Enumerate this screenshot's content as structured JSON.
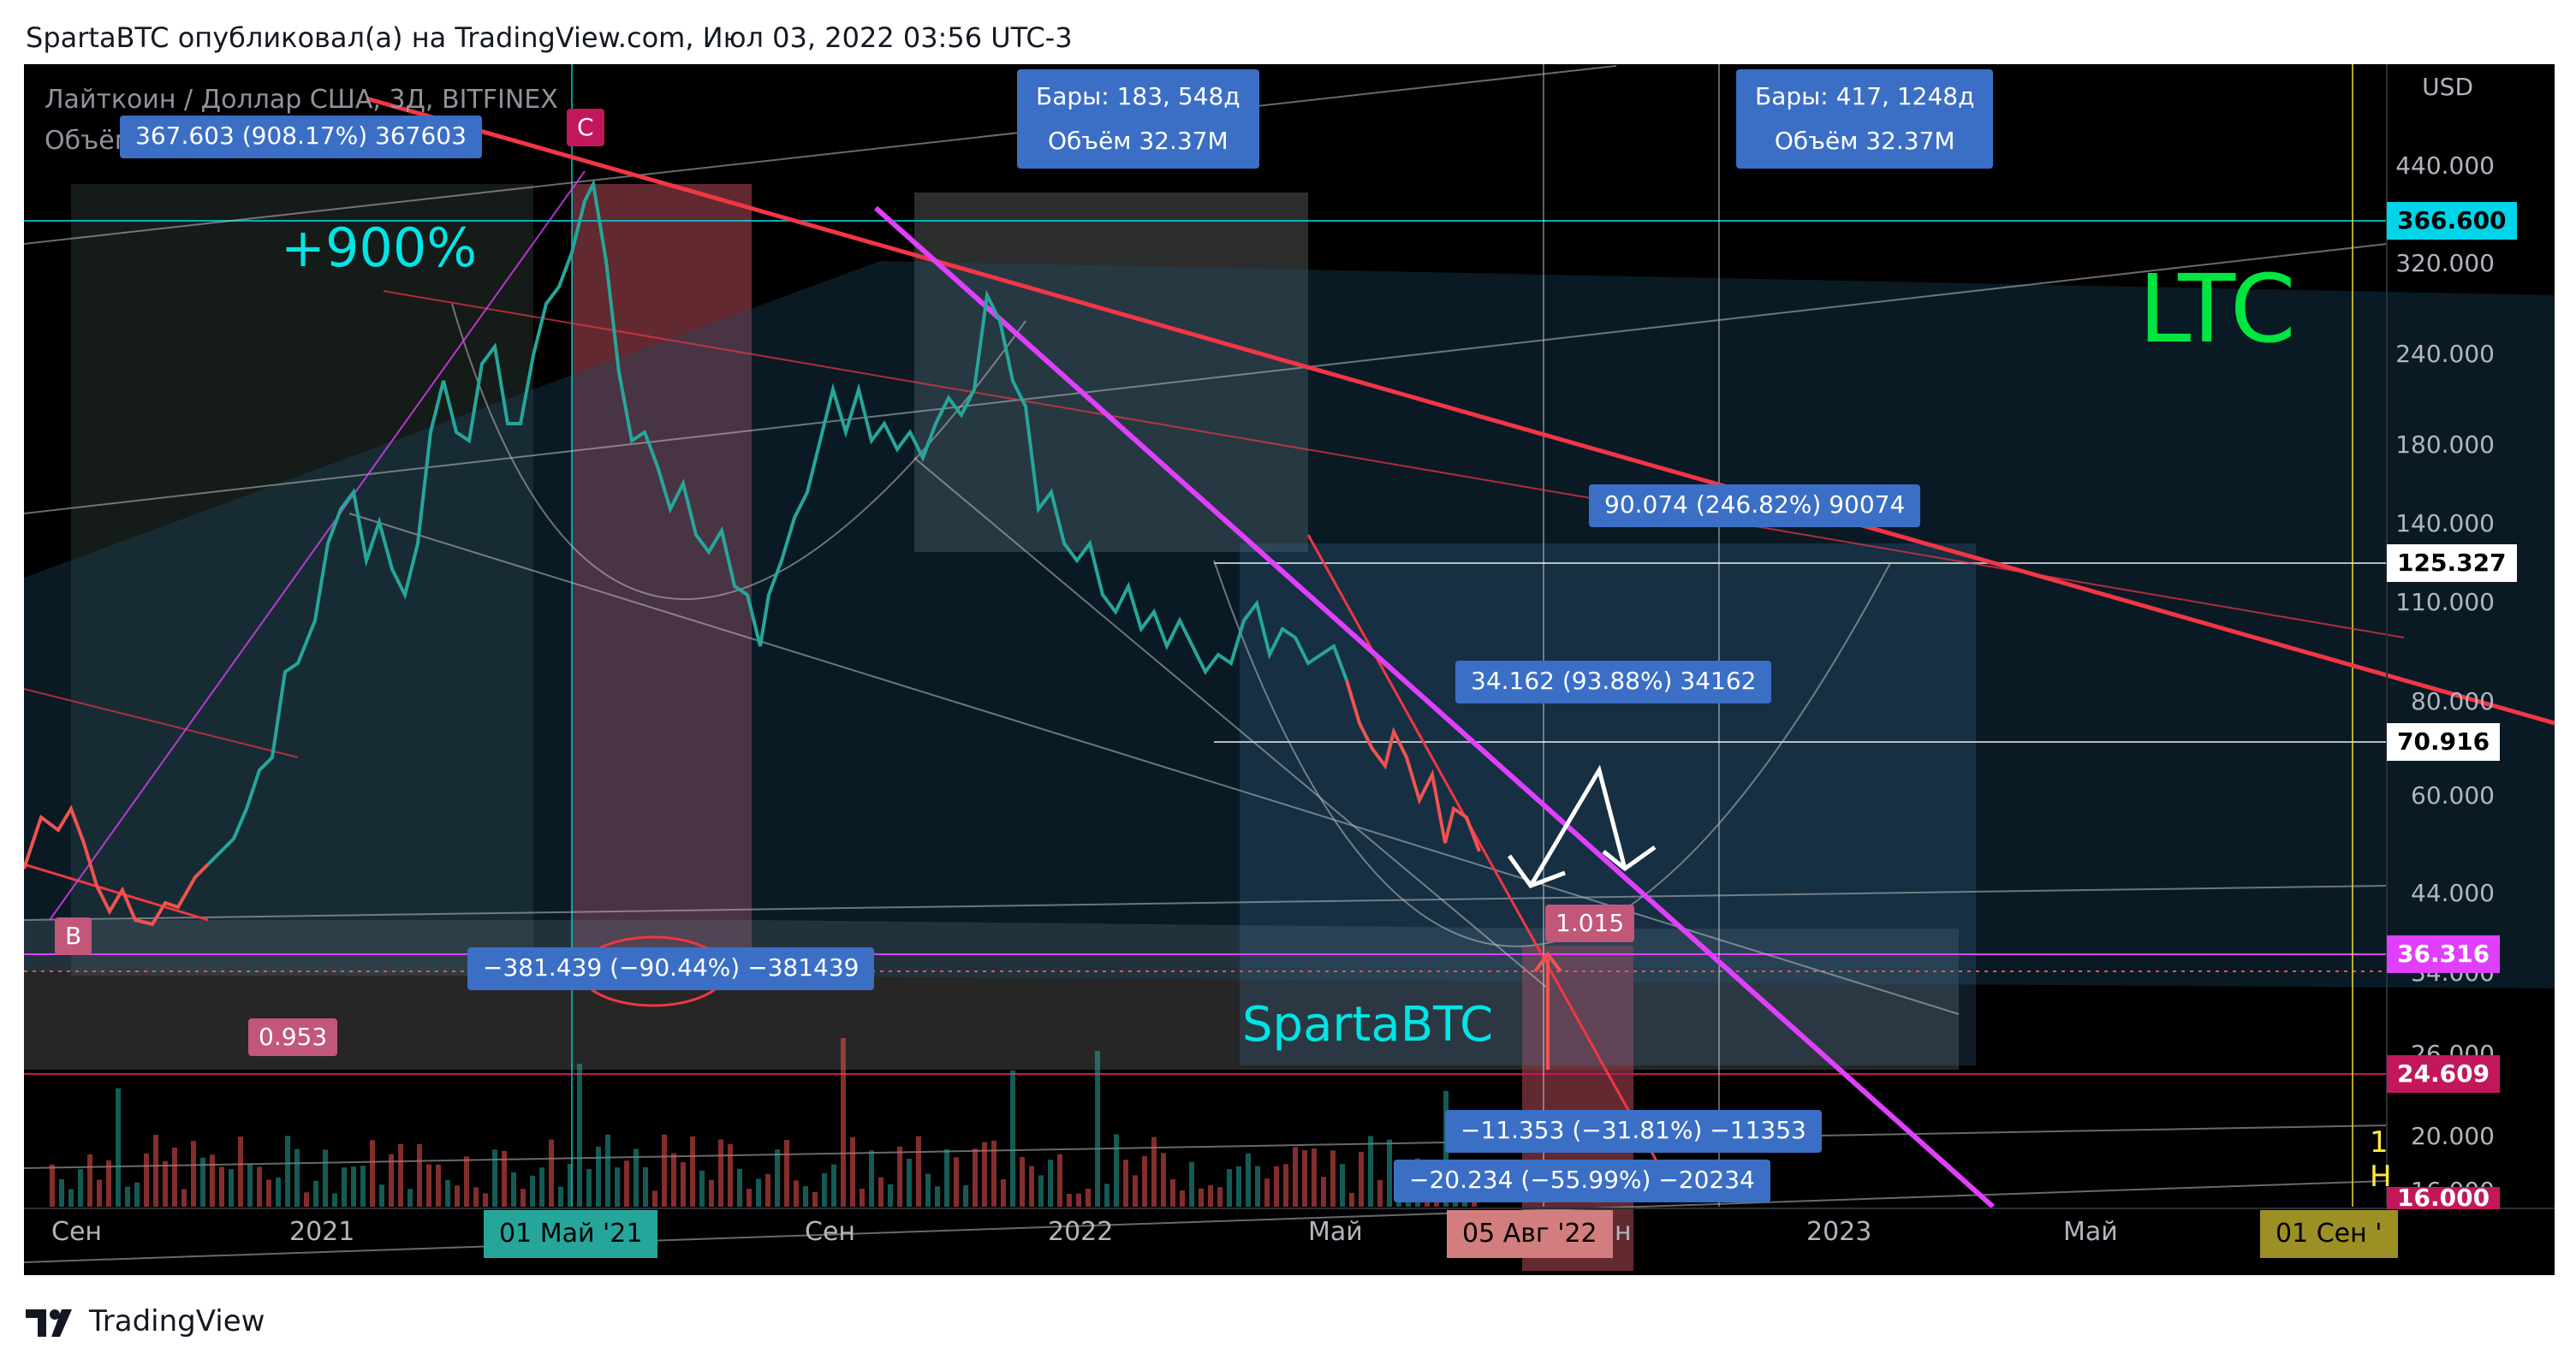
{
  "header": {
    "text": "SpartaBTC опубликовал(а) на TradingView.com, Июл 03, 2022 03:56 UTC-3"
  },
  "legend": {
    "symbol": "Лайткоин / Доллар США, 3Д, BITFINEX",
    "volume": "Объём"
  },
  "price_scale": {
    "currency": "USD",
    "labels": [
      "440.000",
      "320.000",
      "240.000",
      "180.000",
      "140.000",
      "110.000",
      "80.000",
      "60.000",
      "44.000",
      "34.000",
      "26.000",
      "20.000",
      "16.000"
    ]
  },
  "price_tags": [
    {
      "value": "366.600",
      "bg": "#00d4e8",
      "fg": "#000000"
    },
    {
      "value": "125.327",
      "bg": "#ffffff",
      "fg": "#000000"
    },
    {
      "value": "70.916",
      "bg": "#ffffff",
      "fg": "#000000"
    },
    {
      "value": "36.316",
      "bg": "#e040fb",
      "fg": "#ffffff"
    },
    {
      "value": "24.609",
      "bg": "#c2185b",
      "fg": "#ffffff"
    },
    {
      "value": "16.000",
      "bg": "#c2185b",
      "fg": "#ffffff"
    }
  ],
  "time_axis": [
    "Сен",
    "2021",
    "Сен",
    "2022",
    "Май",
    "н",
    "2023",
    "Май"
  ],
  "time_highlights": [
    {
      "label": "01 Май '21",
      "bg": "#26a69a"
    },
    {
      "label": "05 Авг '22",
      "bg": "#d27e7e"
    },
    {
      "label": "01 Сен '",
      "bg": "#9c8f24"
    }
  ],
  "annotations": {
    "top_left": "367.603 (908.17%) 367603",
    "bars1_line1": "Бары: 183, 548д",
    "bars1_line2": "Объём 32.37M",
    "bars2_line1": "Бары: 417, 1248д",
    "bars2_line2": "Объём 32.37M",
    "mid_right": "90.074 (246.82%) 90074",
    "mid_center": "34.162 (93.88%) 34162",
    "drop": "−381.439 (−90.44%) −381439",
    "lower1": "−11.353 (−31.81%) −11353",
    "lower2": "−20.234 (−55.99%) −20234",
    "pct_900": "+900%",
    "ltc": "LTC",
    "author": "SpartaBTC",
    "val_0953": "0.953",
    "val_1015": "1.015",
    "marker_b": "B",
    "marker_c": "C",
    "edge_1": "1",
    "edge_h": "H"
  },
  "colors": {
    "up": "#26a69a",
    "down": "#ef5350",
    "magenta": "#e040fb",
    "red_line": "#f23645",
    "ltc": "#00e640",
    "cyan": "#00e5e5",
    "annotation_bg": "#3b6fc6"
  },
  "footer": {
    "brand": "TradingView"
  }
}
